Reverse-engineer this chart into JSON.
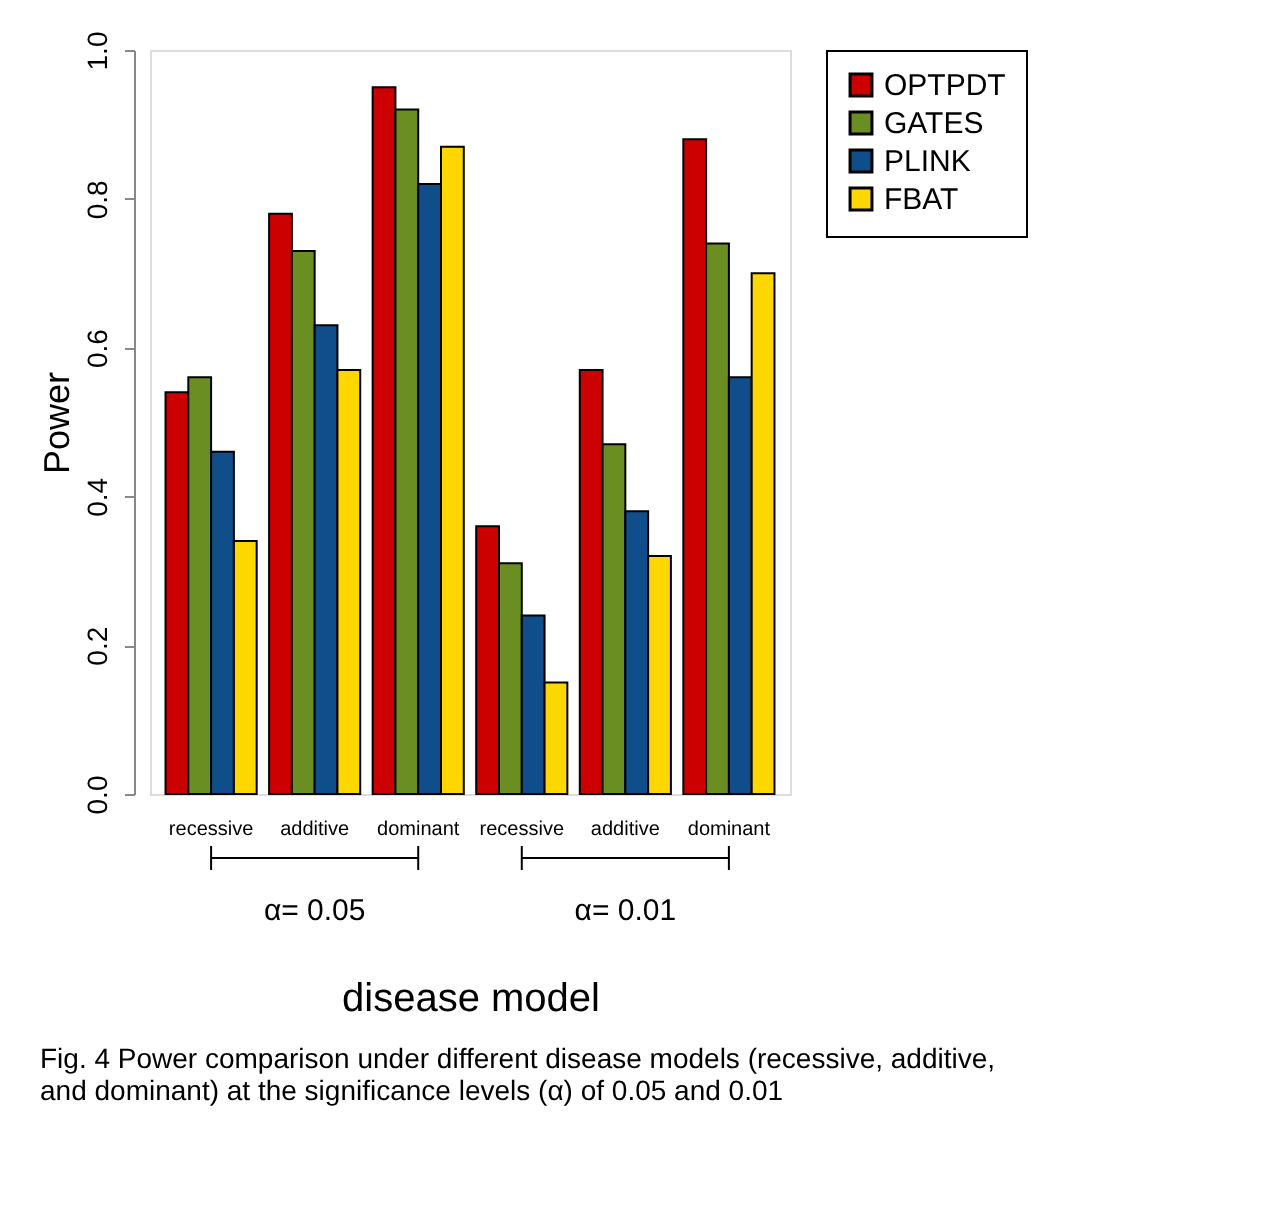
{
  "chart_data": {
    "type": "bar",
    "xlabel": "disease model",
    "ylabel": "Power",
    "categories": [
      "recessive",
      "additive",
      "dominant",
      "recessive",
      "additive",
      "dominant"
    ],
    "series": [
      {
        "name": "OPTPDT",
        "color": "#cc0000",
        "values": [
          0.54,
          0.78,
          0.95,
          0.36,
          0.57,
          0.88
        ]
      },
      {
        "name": "GATES",
        "color": "#6b8e23",
        "values": [
          0.56,
          0.73,
          0.92,
          0.31,
          0.47,
          0.74
        ]
      },
      {
        "name": "PLINK",
        "color": "#104e8b",
        "values": [
          0.46,
          0.63,
          0.82,
          0.24,
          0.38,
          0.56
        ]
      },
      {
        "name": "FBAT",
        "color": "#ffd700",
        "values": [
          0.34,
          0.57,
          0.87,
          0.15,
          0.32,
          0.7
        ]
      }
    ],
    "ylim": [
      0,
      1
    ],
    "yticks": [
      {
        "value": 0,
        "label": "0.0"
      },
      0.2,
      0.4,
      0.6,
      0.8,
      {
        "value": 1,
        "label": "1.0"
      }
    ],
    "grid": false,
    "legend": "right",
    "annotations": [
      "α= 0.05",
      "α= 0.01",
      "Fig. 4 Power comparison under different disease models (recessive, additive, and dominant) at the significance levels (α) of 0.05 and 0.01"
    ]
  }
}
